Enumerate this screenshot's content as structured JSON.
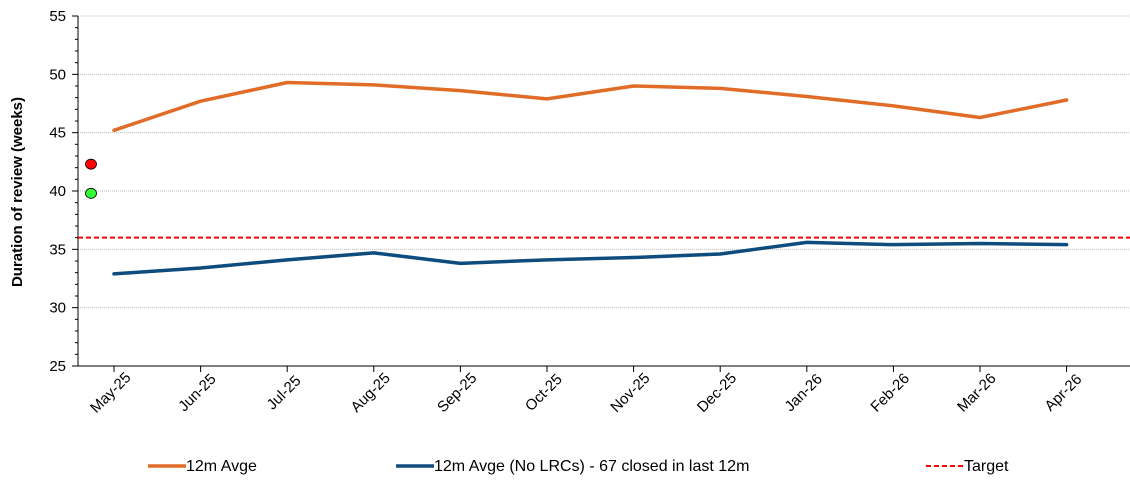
{
  "chart_data": {
    "type": "line",
    "title": "",
    "xlabel": "",
    "ylabel": "Duration of review (weeks)",
    "ylim": [
      25,
      55
    ],
    "yticks": [
      25,
      30,
      35,
      40,
      45,
      50,
      55
    ],
    "grid": true,
    "legend_position": "bottom",
    "categories": [
      "May-25",
      "Jun-25",
      "Jul-25",
      "Aug-25",
      "Sep-25",
      "Oct-25",
      "Nov-25",
      "Dec-25",
      "Jan-26",
      "Feb-26",
      "Mar-26",
      "Apr-26"
    ],
    "series": [
      {
        "name": "12m Avge",
        "color": "#E06C28",
        "style": "solid",
        "values": [
          45.2,
          47.7,
          49.3,
          49.1,
          48.6,
          47.9,
          49.0,
          48.8,
          48.1,
          47.3,
          46.3,
          47.8
        ]
      },
      {
        "name": "12m Avge (No LRCs) - 67 closed in last 12m",
        "color": "#0E4C7E",
        "style": "solid",
        "values": [
          32.9,
          33.4,
          34.1,
          34.7,
          33.8,
          34.1,
          34.3,
          34.6,
          35.6,
          35.4,
          35.5,
          35.4
        ]
      },
      {
        "name": "Target",
        "color": "#FF0000",
        "style": "dashed",
        "constant": 36.0
      }
    ],
    "markers": [
      {
        "value": 42.3,
        "color": "#FF0000"
      },
      {
        "value": 39.8,
        "color": "#33FF33"
      }
    ]
  }
}
